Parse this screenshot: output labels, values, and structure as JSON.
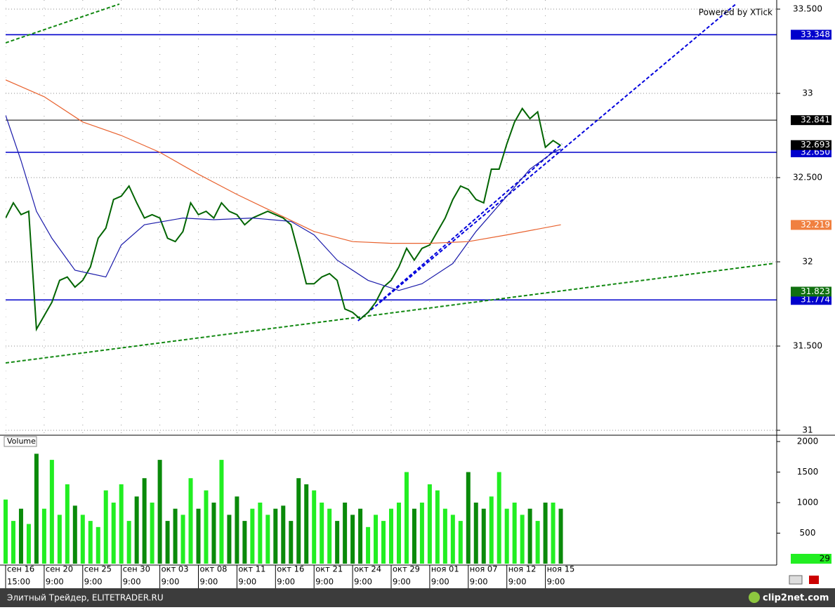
{
  "chart_data": {
    "type": "financial",
    "watermark": "Powered by XTick",
    "xlim": [
      0,
      200
    ],
    "xticks": [
      {
        "value": 0,
        "label": "сен 16",
        "sublabel": "15:00"
      },
      {
        "value": 10,
        "label": "сен 20",
        "sublabel": "9:00"
      },
      {
        "value": 20,
        "label": "сен 25",
        "sublabel": "9:00"
      },
      {
        "value": 30,
        "label": "сен 30",
        "sublabel": "9:00"
      },
      {
        "value": 40,
        "label": "окт 03",
        "sublabel": "9:00"
      },
      {
        "value": 50,
        "label": "окт 08",
        "sublabel": "9:00"
      },
      {
        "value": 60,
        "label": "окт 11",
        "sublabel": "9:00"
      },
      {
        "value": 70,
        "label": "окт 16",
        "sublabel": "9:00"
      },
      {
        "value": 80,
        "label": "окт 21",
        "sublabel": "9:00"
      },
      {
        "value": 90,
        "label": "окт 24",
        "sublabel": "9:00"
      },
      {
        "value": 100,
        "label": "окт 29",
        "sublabel": "9:00"
      },
      {
        "value": 110,
        "label": "ноя 01",
        "sublabel": "9:00"
      },
      {
        "value": 120,
        "label": "ноя 07",
        "sublabel": "9:00"
      },
      {
        "value": 130,
        "label": "ноя 12",
        "sublabel": "9:00"
      },
      {
        "value": 140,
        "label": "ноя 15",
        "sublabel": "9:00"
      }
    ],
    "ylim": [
      31,
      33.5
    ],
    "yticks": [
      {
        "value": 33.5,
        "label": "33.500"
      },
      33,
      {
        "value": 32.5,
        "label": "32.500"
      },
      32,
      {
        "value": 31.5,
        "label": "31.500"
      },
      31
    ],
    "grid": true,
    "series": [
      {
        "color": "#006400",
        "x": [
          0,
          2,
          4,
          6,
          8,
          10,
          12,
          14,
          16,
          18,
          20,
          22,
          24,
          26,
          28,
          30,
          32,
          34,
          36,
          38,
          40,
          42,
          44,
          46,
          48,
          50,
          52,
          54,
          56,
          58,
          60,
          62,
          64,
          66,
          68,
          70,
          72,
          74,
          76,
          78,
          80,
          82,
          84,
          86,
          88,
          90,
          92,
          94,
          96,
          98,
          100,
          102,
          104,
          106,
          108,
          110,
          112,
          114,
          116,
          118,
          120,
          122,
          124,
          126,
          128,
          130,
          132,
          134,
          136,
          138,
          140,
          142,
          144
        ],
        "values": [
          32.26,
          32.35,
          32.28,
          32.3,
          31.6,
          31.68,
          31.76,
          31.89,
          31.91,
          31.85,
          31.89,
          31.97,
          32.14,
          32.2,
          32.37,
          32.39,
          32.45,
          32.35,
          32.26,
          32.28,
          32.26,
          32.14,
          32.12,
          32.18,
          32.35,
          32.28,
          32.3,
          32.26,
          32.35,
          32.3,
          32.28,
          32.22,
          32.26,
          32.28,
          32.3,
          32.28,
          32.26,
          32.22,
          32.05,
          31.87,
          31.87,
          31.91,
          31.93,
          31.89,
          31.72,
          31.7,
          31.66,
          31.7,
          31.76,
          31.85,
          31.89,
          31.97,
          32.08,
          32.01,
          32.08,
          32.1,
          32.18,
          32.26,
          32.37,
          32.45,
          32.43,
          32.37,
          32.35,
          32.55,
          32.55,
          32.7,
          32.83,
          32.91,
          32.85,
          32.89,
          32.68,
          32.72,
          32.69
        ]
      },
      {
        "color": "#1a1aaa",
        "x": [
          0,
          4,
          8,
          12,
          18,
          26,
          30,
          36,
          46,
          54,
          64,
          74,
          80,
          86,
          94,
          102,
          108,
          116,
          122,
          130,
          136,
          142,
          144
        ],
        "values": [
          32.87,
          32.6,
          32.3,
          32.14,
          31.95,
          31.91,
          32.1,
          32.22,
          32.26,
          32.25,
          32.26,
          32.24,
          32.16,
          32.01,
          31.89,
          31.83,
          31.87,
          31.99,
          32.18,
          32.39,
          32.55,
          32.65,
          32.67
        ]
      },
      {
        "color": "#e8602c",
        "x": [
          0,
          10,
          20,
          30,
          40,
          50,
          60,
          70,
          80,
          90,
          100,
          110,
          120,
          130,
          144
        ],
        "values": [
          33.08,
          32.98,
          32.83,
          32.75,
          32.65,
          32.52,
          32.4,
          32.29,
          32.18,
          32.12,
          32.11,
          32.11,
          32.12,
          32.16,
          32.22
        ]
      }
    ],
    "levels": [
      {
        "value": 33.348,
        "color": "#0000cc"
      },
      {
        "value": 32.841,
        "color": "#000000"
      },
      {
        "value": 32.65,
        "label": "32.650",
        "color": "#0000cc"
      },
      {
        "value": 31.774,
        "color": "#0000cc"
      }
    ],
    "trendlines": [
      {
        "x": [
          0,
          199
        ],
        "values": [
          31.4,
          31.99
        ],
        "color": "#118811"
      },
      {
        "x": [
          0,
          29.5
        ],
        "values": [
          33.3,
          33.53
        ],
        "color": "#118811"
      },
      {
        "x": [
          91.4,
          189.4
        ],
        "values": [
          31.65,
          33.53
        ],
        "color": "#0000dd"
      },
      {
        "x": [
          96.9,
          144.3
        ],
        "values": [
          31.76,
          32.7
        ],
        "color": "#0000dd"
      }
    ],
    "axis_markers": [
      {
        "value": 32.693,
        "bg": "#000000",
        "fg": "#ffffff"
      },
      {
        "value": 32.219,
        "bg": "#f08040",
        "fg": "#ffffff"
      },
      {
        "value": 31.823,
        "bg": "#107010",
        "fg": "#ffffff"
      }
    ],
    "volume": {
      "label": "Volume",
      "ylim": [
        0,
        2000
      ],
      "yticks": [
        2000,
        1500,
        1000,
        500
      ],
      "up_color": "#22ee22",
      "down_color": "#0a8a0a",
      "values": [
        1050,
        700,
        900,
        650,
        1800,
        900,
        1700,
        800,
        1300,
        950,
        800,
        700,
        600,
        1200,
        1000,
        1300,
        700,
        1100,
        1400,
        1000,
        1700,
        700,
        900,
        800,
        1400,
        900,
        1200,
        1000,
        1700,
        800,
        1100,
        700,
        900,
        1000,
        800,
        900,
        950,
        700,
        1400,
        1300,
        1200,
        1000,
        900,
        700,
        1000,
        800,
        900,
        600,
        800,
        700,
        900,
        1000,
        1500,
        900,
        1000,
        1300,
        1200,
        900,
        800,
        700,
        1500,
        1000,
        900,
        1100,
        1500,
        900,
        1000,
        800,
        900,
        700,
        1000,
        1000,
        900
      ],
      "last": {
        "value": 29,
        "bg": "#22ee22",
        "fg": "#000000"
      }
    },
    "footer": "Элитный Трейдер, ELITETRADER.RU",
    "brand": "clip2net.com"
  }
}
